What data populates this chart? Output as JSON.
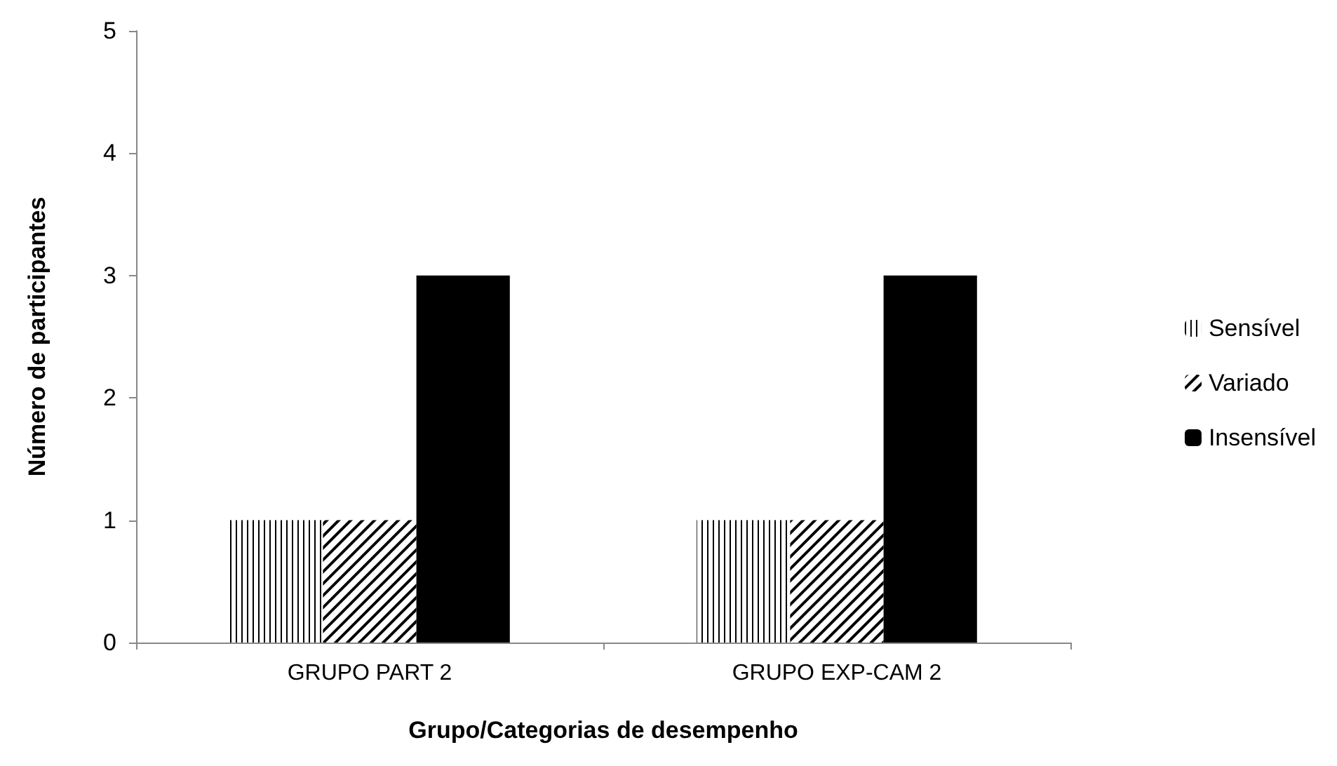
{
  "chart_data": {
    "type": "bar",
    "xlabel": "Grupo/Categorias de desempenho",
    "ylabel": "Número de participantes",
    "categories": [
      "GRUPO PART 2",
      "GRUPO EXP-CAM 2"
    ],
    "series": [
      {
        "name": "Sensível",
        "color": "#ffffff",
        "values": [
          1,
          1
        ]
      },
      {
        "name": "Variado",
        "color": "#ffffff",
        "values": [
          1,
          1
        ]
      },
      {
        "name": "Insensível",
        "color": "#000000",
        "values": [
          3,
          3
        ]
      }
    ],
    "ylim": [
      0,
      5
    ],
    "yticks": [
      0,
      1,
      2,
      3,
      4,
      5
    ],
    "grid": false,
    "legend": "right"
  }
}
